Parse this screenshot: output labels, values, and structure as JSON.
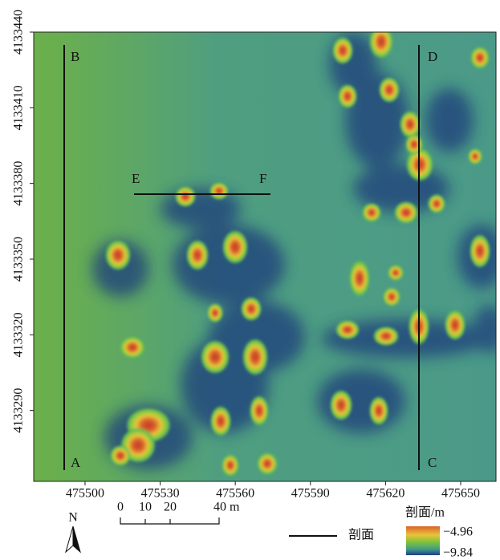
{
  "map": {
    "xlim": [
      475479.5,
      475664.1
    ],
    "ylim": [
      4133261.9,
      4133440
    ],
    "xticks": [
      475500,
      475530,
      475560,
      475590,
      475620,
      475650
    ],
    "yticks": [
      4133290,
      4133320,
      4133350,
      4133380,
      4133410,
      4133440
    ],
    "section_labels": [
      "A",
      "B",
      "C",
      "D",
      "E",
      "F"
    ],
    "north": "N",
    "scale_bar": [
      "0",
      "10",
      "20",
      "40 m"
    ],
    "legend_section": "剖面",
    "colorbar": {
      "title": "剖面/m",
      "max": "−4.96",
      "min": "−9.84"
    }
  }
}
